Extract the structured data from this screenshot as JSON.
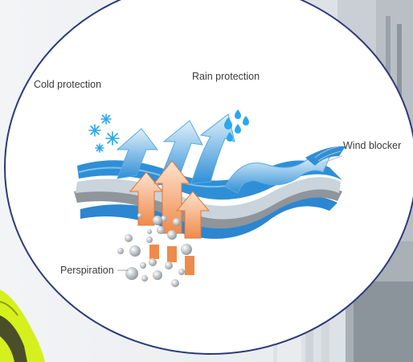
{
  "labels": {
    "cold": "Cold protection",
    "rain": "Rain protection",
    "wind": "Wind blocker",
    "perspiration": "Perspiration"
  },
  "colors": {
    "circle_outline": "#2c3a78",
    "fabric_top": "#2f8fd6",
    "fabric_mid": "#c9d4dc",
    "fabric_gray": "#8f959a",
    "fabric_bottom": "#2c86d0",
    "heat_arrows": "#f3a06a",
    "vapor_bubbles": "#9aa0a6",
    "snowflake": "#2aa8f0",
    "raindrops": "#2aa8f0",
    "hi_vis_jacket": "#d6f01e"
  },
  "icons": [
    "snowflake-icon",
    "raindrops-icon",
    "wind-lines-icon",
    "vapor-bubbles-icon"
  ]
}
